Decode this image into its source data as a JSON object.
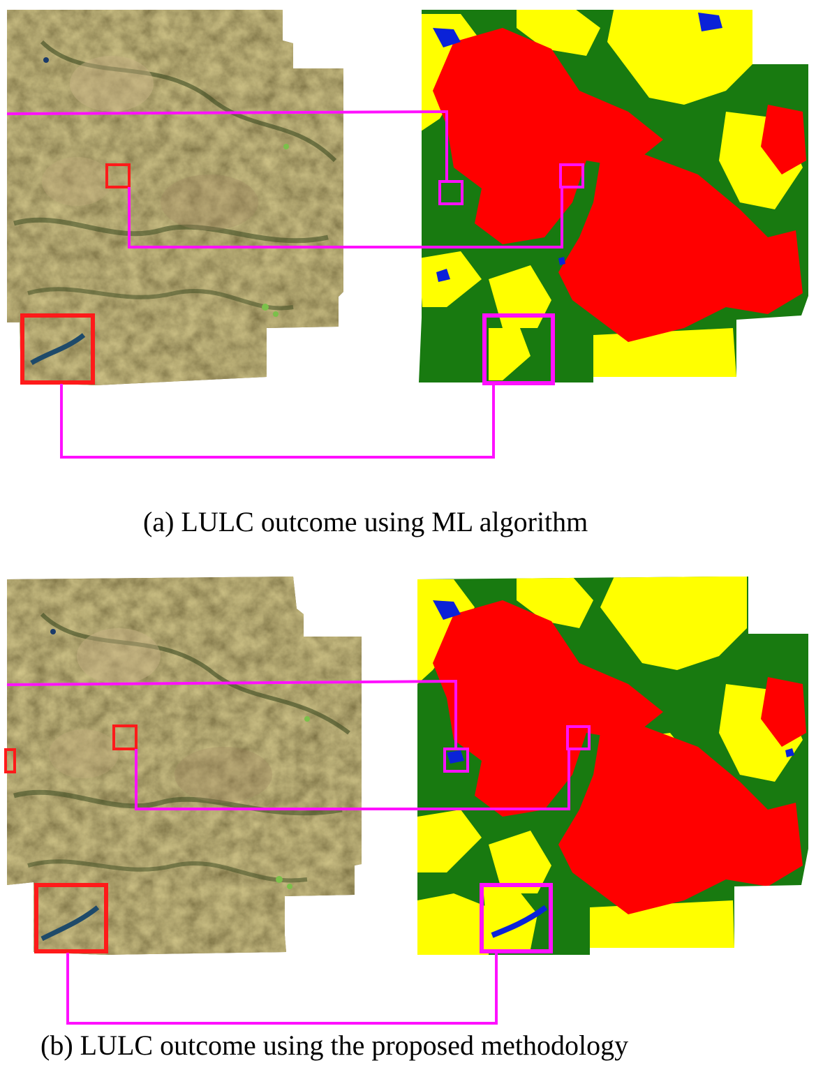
{
  "figure": {
    "caption_a": "(a) LULC outcome using ML algorithm",
    "caption_b": "(b) LULC outcome using the proposed methodology"
  },
  "colors": {
    "satellite_base": "#6e5a2c",
    "satellite_dark": "#3e4a22",
    "satellite_light": "#b8a06a",
    "class_red": "#ff0000",
    "class_green": "#187a10",
    "class_yellow": "#ffff00",
    "class_water": "#0a22d8",
    "connector_magenta": "#ff10ff",
    "highlight_red": "#ff1a1a"
  }
}
